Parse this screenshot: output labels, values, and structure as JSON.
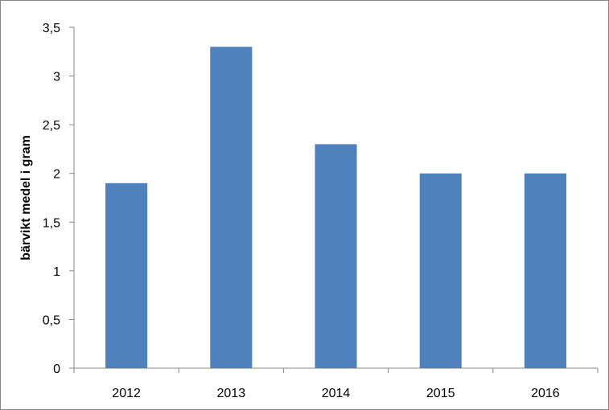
{
  "chart_data": {
    "type": "bar",
    "categories": [
      "2012",
      "2013",
      "2014",
      "2015",
      "2016"
    ],
    "values": [
      1.9,
      3.3,
      2.3,
      2.0,
      2.0
    ],
    "ylabel": "bärvikt medel i gram",
    "xlabel": "",
    "ylim": [
      0,
      3.5
    ],
    "yticks": [
      "0",
      "0,5",
      "1",
      "1,5",
      "2",
      "2,5",
      "3",
      "3,5"
    ],
    "bar_color": "#4F81BD",
    "grid": false,
    "legend": "none"
  }
}
